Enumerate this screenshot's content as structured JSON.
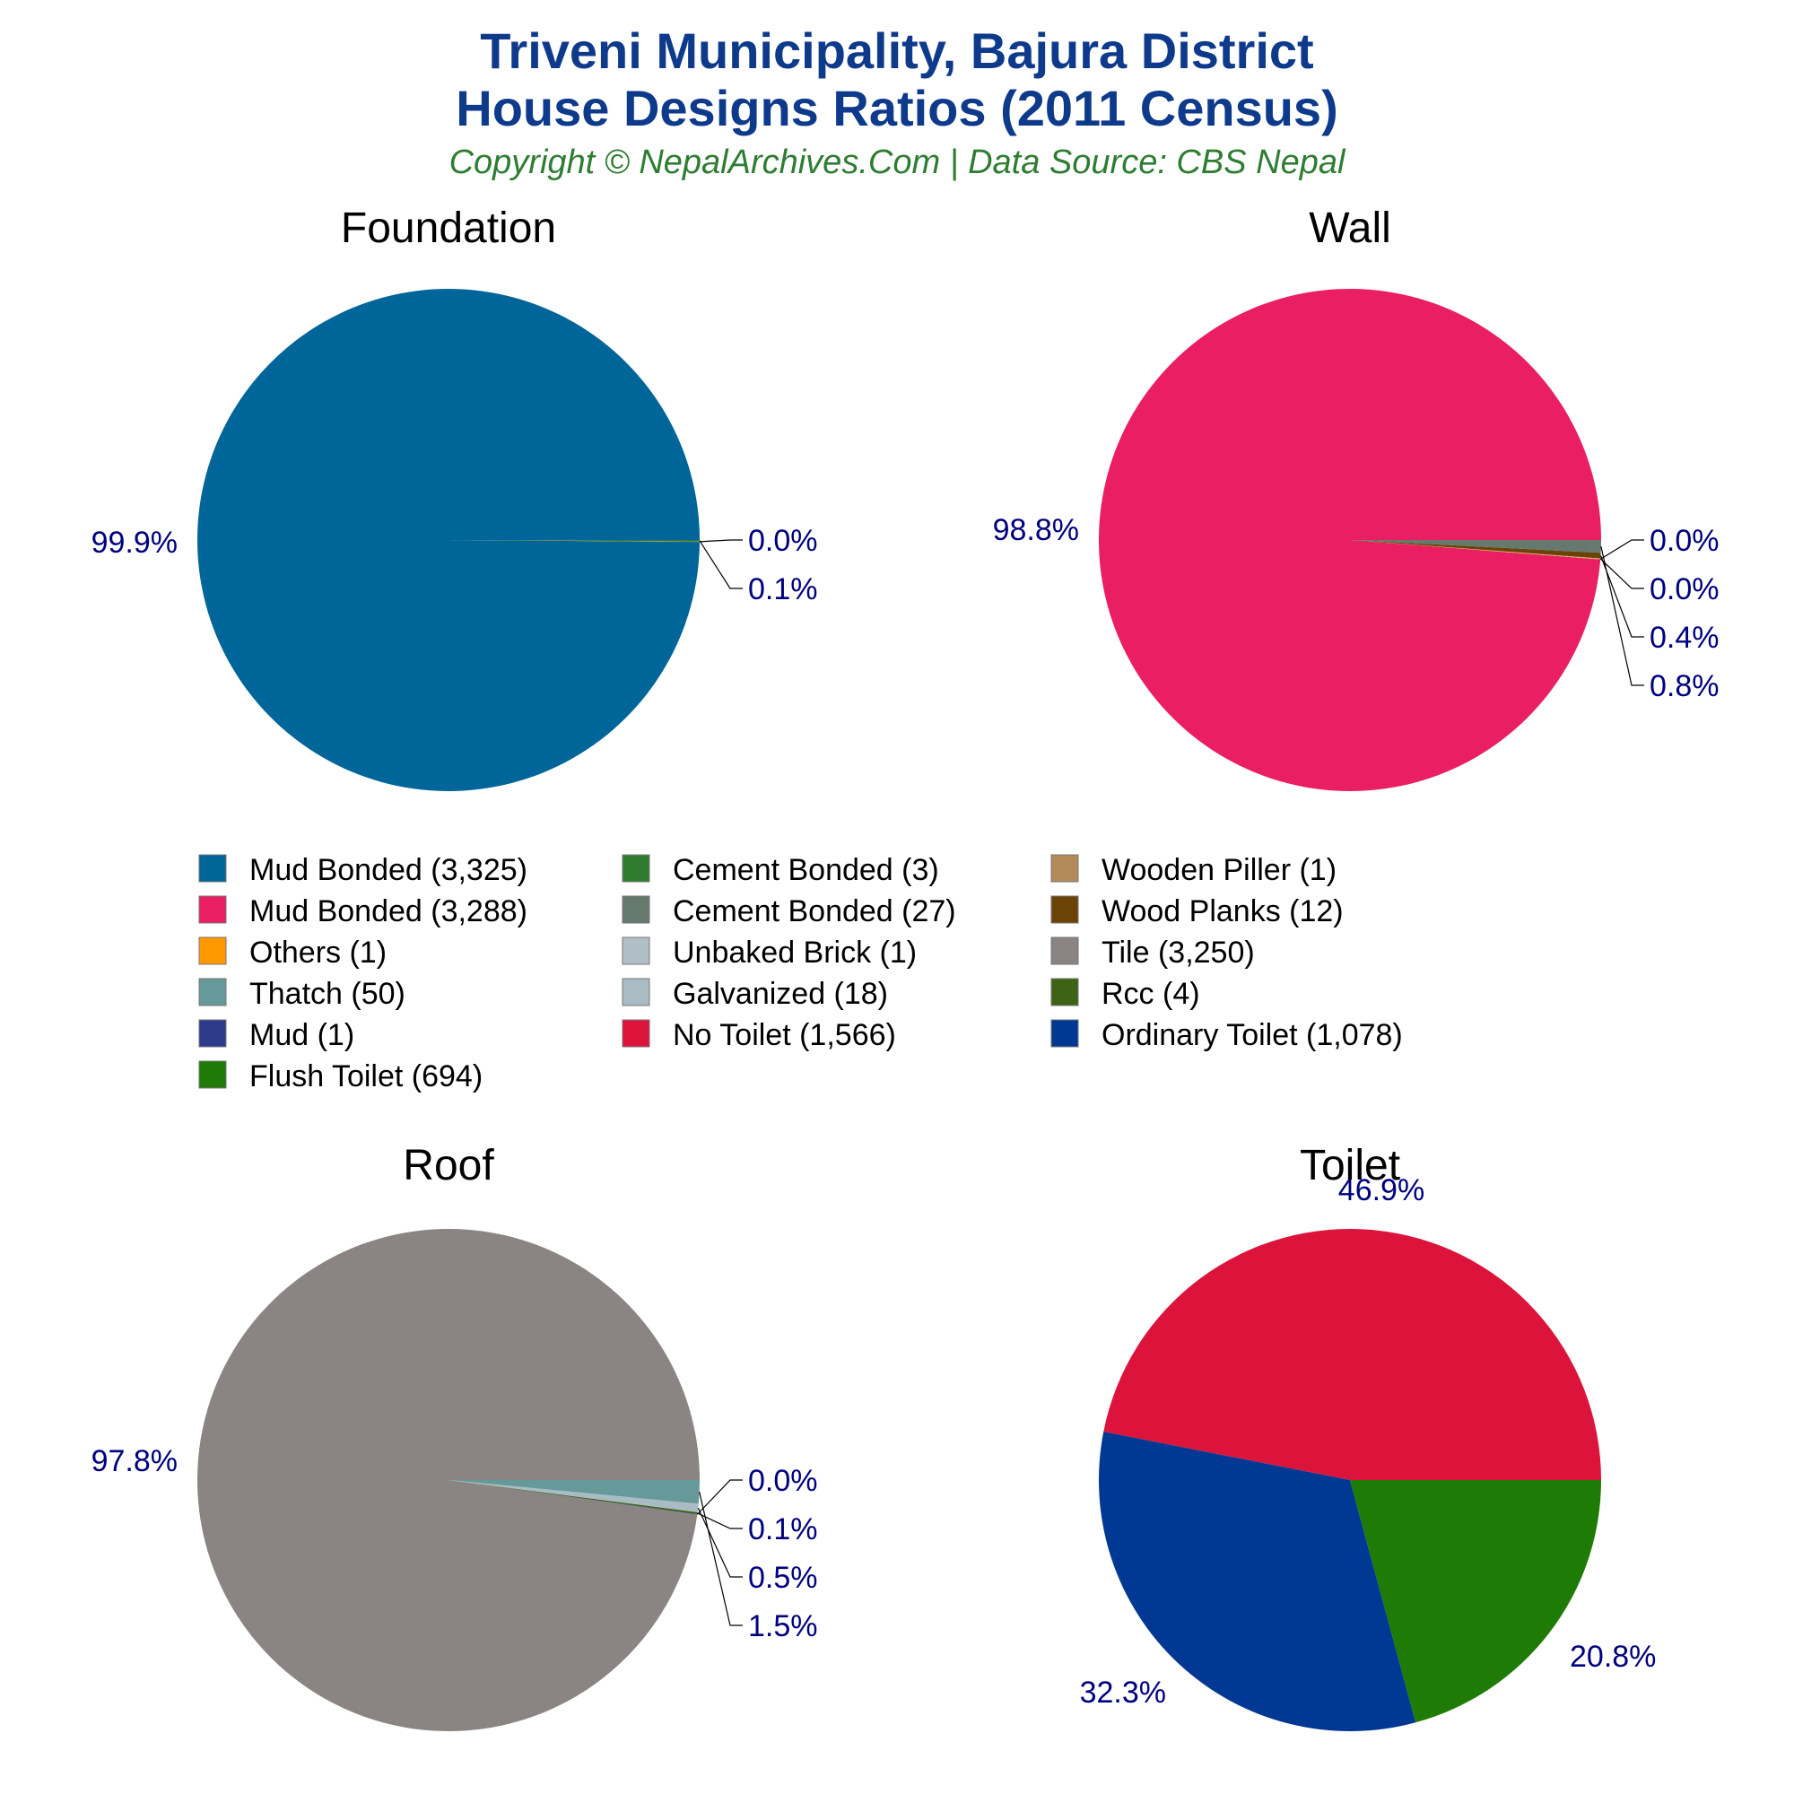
{
  "header": {
    "title_line1": "Triveni Municipality, Bajura District",
    "title_line2": "House Designs Ratios (2011 Census)",
    "subtitle": "Copyright © NepalArchives.Com | Data Source: CBS Nepal"
  },
  "chart_data": [
    {
      "type": "pie",
      "title": "Foundation",
      "slices": [
        {
          "label": "Mud Bonded (3,325)",
          "value": 3325,
          "percent_label": "99.9%",
          "color": "#006699"
        },
        {
          "label": "Wooden Piller (1)",
          "value": 1,
          "percent_label": "0.0%",
          "color": "#b38b5a"
        },
        {
          "label": "Cement Bonded (3)",
          "value": 3,
          "percent_label": "0.1%",
          "color": "#2e7d2e"
        }
      ]
    },
    {
      "type": "pie",
      "title": "Wall",
      "slices": [
        {
          "label": "Mud Bonded (3,288)",
          "value": 3288,
          "percent_label": "98.8%",
          "color": "#e91e63"
        },
        {
          "label": "Others (1)",
          "value": 1,
          "percent_label": "0.0%",
          "color": "#ff9800"
        },
        {
          "label": "Unbaked Brick (1)",
          "value": 1,
          "percent_label": "0.0%",
          "color": "#b0bec5"
        },
        {
          "label": "Wood Planks (12)",
          "value": 12,
          "percent_label": "0.4%",
          "color": "#6b4306"
        },
        {
          "label": "Cement Bonded (27)",
          "value": 27,
          "percent_label": "0.8%",
          "color": "#65796f"
        }
      ]
    },
    {
      "type": "pie",
      "title": "Roof",
      "slices": [
        {
          "label": "Tile (3,250)",
          "value": 3250,
          "percent_label": "97.8%",
          "color": "#8a8583"
        },
        {
          "label": "Mud (1)",
          "value": 1,
          "percent_label": "0.0%",
          "color": "#2e3a8c"
        },
        {
          "label": "Rcc (4)",
          "value": 4,
          "percent_label": "0.1%",
          "color": "#3d6314"
        },
        {
          "label": "Galvanized (18)",
          "value": 18,
          "percent_label": "0.5%",
          "color": "#a9bcc4"
        },
        {
          "label": "Thatch (50)",
          "value": 50,
          "percent_label": "1.5%",
          "color": "#669999"
        }
      ]
    },
    {
      "type": "pie",
      "title": "Toilet",
      "slices": [
        {
          "label": "No Toilet (1,566)",
          "value": 1566,
          "percent_label": "46.9%",
          "color": "#dc143c"
        },
        {
          "label": "Ordinary Toilet (1,078)",
          "value": 1078,
          "percent_label": "32.3%",
          "color": "#003893"
        },
        {
          "label": "Flush Toilet (694)",
          "value": 694,
          "percent_label": "20.8%",
          "color": "#1e7b05"
        }
      ]
    }
  ],
  "legend": [
    {
      "label": "Mud Bonded (3,325)",
      "color": "#006699"
    },
    {
      "label": "Mud Bonded (3,288)",
      "color": "#e91e63"
    },
    {
      "label": "Others (1)",
      "color": "#ff9800"
    },
    {
      "label": "Thatch (50)",
      "color": "#669999"
    },
    {
      "label": "Mud (1)",
      "color": "#2e3a8c"
    },
    {
      "label": "Flush Toilet (694)",
      "color": "#1e7b05"
    },
    {
      "label": "Cement Bonded (3)",
      "color": "#2e7d2e"
    },
    {
      "label": "Cement Bonded (27)",
      "color": "#65796f"
    },
    {
      "label": "Unbaked Brick (1)",
      "color": "#b0bec5"
    },
    {
      "label": "Galvanized (18)",
      "color": "#a9bcc4"
    },
    {
      "label": "No Toilet (1,566)",
      "color": "#dc143c"
    },
    {
      "label": "Wooden Piller (1)",
      "color": "#b38b5a"
    },
    {
      "label": "Wood Planks (12)",
      "color": "#6b4306"
    },
    {
      "label": "Tile (3,250)",
      "color": "#8a8583"
    },
    {
      "label": "Rcc (4)",
      "color": "#3d6314"
    },
    {
      "label": "Ordinary Toilet (1,078)",
      "color": "#003893"
    }
  ]
}
